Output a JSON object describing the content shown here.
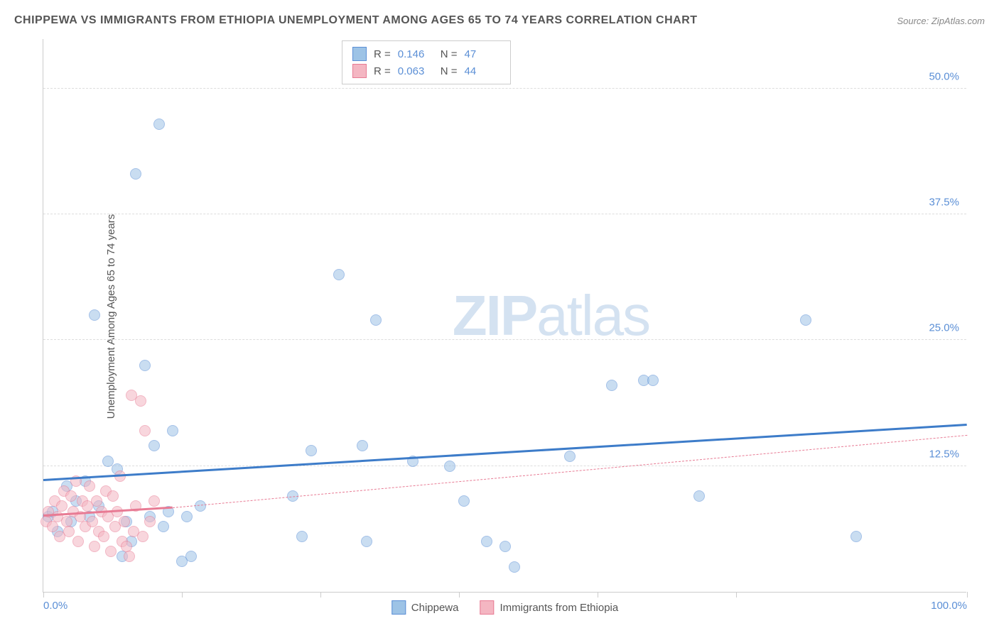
{
  "title": "CHIPPEWA VS IMMIGRANTS FROM ETHIOPIA UNEMPLOYMENT AMONG AGES 65 TO 74 YEARS CORRELATION CHART",
  "source": "Source: ZipAtlas.com",
  "y_axis_label": "Unemployment Among Ages 65 to 74 years",
  "watermark_bold": "ZIP",
  "watermark_light": "atlas",
  "chart": {
    "type": "scatter",
    "xlim": [
      0,
      100
    ],
    "ylim": [
      0,
      55
    ],
    "y_ticks": [
      {
        "value": 12.5,
        "label": "12.5%"
      },
      {
        "value": 25.0,
        "label": "25.0%"
      },
      {
        "value": 37.5,
        "label": "37.5%"
      },
      {
        "value": 50.0,
        "label": "50.0%"
      }
    ],
    "x_ticks": [
      0,
      15,
      30,
      45,
      60,
      75,
      100
    ],
    "x_tick_labels": {
      "start": "0.0%",
      "end": "100.0%"
    },
    "background_color": "#ffffff",
    "grid_color": "#dddddd",
    "axis_color": "#cccccc",
    "marker_size": 16,
    "marker_opacity": 0.55
  },
  "series": [
    {
      "name": "Chippewa",
      "color_fill": "#9dc3e6",
      "color_stroke": "#5b8fd6",
      "R": "0.146",
      "N": "47",
      "trend": {
        "x1": 0,
        "y1": 11.0,
        "x2": 100,
        "y2": 16.5,
        "color": "#3d7cc9",
        "width": 3,
        "dash": false
      },
      "points": [
        [
          0.5,
          7.5
        ],
        [
          1.0,
          8.0
        ],
        [
          1.5,
          6.0
        ],
        [
          2.5,
          10.5
        ],
        [
          3.0,
          7.0
        ],
        [
          3.5,
          9.0
        ],
        [
          4.5,
          11.0
        ],
        [
          5.0,
          7.5
        ],
        [
          5.5,
          27.5
        ],
        [
          6.0,
          8.5
        ],
        [
          7.0,
          13.0
        ],
        [
          8.0,
          12.2
        ],
        [
          8.5,
          3.5
        ],
        [
          9.0,
          7.0
        ],
        [
          9.5,
          5.0
        ],
        [
          10.0,
          41.5
        ],
        [
          11.0,
          22.5
        ],
        [
          11.5,
          7.5
        ],
        [
          12.0,
          14.5
        ],
        [
          12.5,
          46.5
        ],
        [
          13.0,
          6.5
        ],
        [
          13.5,
          8.0
        ],
        [
          14.0,
          16.0
        ],
        [
          15.0,
          3.0
        ],
        [
          15.5,
          7.5
        ],
        [
          16.0,
          3.5
        ],
        [
          17.0,
          8.5
        ],
        [
          27.0,
          9.5
        ],
        [
          28.0,
          5.5
        ],
        [
          29.0,
          14.0
        ],
        [
          32.0,
          31.5
        ],
        [
          34.5,
          14.5
        ],
        [
          35.0,
          5.0
        ],
        [
          36.0,
          27.0
        ],
        [
          40.0,
          13.0
        ],
        [
          44.0,
          12.5
        ],
        [
          45.5,
          9.0
        ],
        [
          48.0,
          5.0
        ],
        [
          50.0,
          4.5
        ],
        [
          51.0,
          2.5
        ],
        [
          57.0,
          13.5
        ],
        [
          61.5,
          20.5
        ],
        [
          65.0,
          21.0
        ],
        [
          66.0,
          21.0
        ],
        [
          71.0,
          9.5
        ],
        [
          82.5,
          27.0
        ],
        [
          88.0,
          5.5
        ]
      ]
    },
    {
      "name": "Immigrants from Ethiopia",
      "color_fill": "#f4b6c2",
      "color_stroke": "#e87b94",
      "R": "0.063",
      "N": "44",
      "trend_solid": {
        "x1": 0,
        "y1": 7.5,
        "x2": 14,
        "y2": 8.3,
        "color": "#e87b94",
        "width": 3
      },
      "trend_dashed": {
        "x1": 14,
        "y1": 8.3,
        "x2": 100,
        "y2": 15.5,
        "color": "#e87b94",
        "width": 1
      },
      "points": [
        [
          0.3,
          7.0
        ],
        [
          0.5,
          8.0
        ],
        [
          1.0,
          6.5
        ],
        [
          1.2,
          9.0
        ],
        [
          1.5,
          7.5
        ],
        [
          1.8,
          5.5
        ],
        [
          2.0,
          8.5
        ],
        [
          2.2,
          10.0
        ],
        [
          2.5,
          7.0
        ],
        [
          2.8,
          6.0
        ],
        [
          3.0,
          9.5
        ],
        [
          3.2,
          8.0
        ],
        [
          3.5,
          11.0
        ],
        [
          3.8,
          5.0
        ],
        [
          4.0,
          7.5
        ],
        [
          4.2,
          9.0
        ],
        [
          4.5,
          6.5
        ],
        [
          4.8,
          8.5
        ],
        [
          5.0,
          10.5
        ],
        [
          5.3,
          7.0
        ],
        [
          5.5,
          4.5
        ],
        [
          5.8,
          9.0
        ],
        [
          6.0,
          6.0
        ],
        [
          6.3,
          8.0
        ],
        [
          6.5,
          5.5
        ],
        [
          6.8,
          10.0
        ],
        [
          7.0,
          7.5
        ],
        [
          7.3,
          4.0
        ],
        [
          7.5,
          9.5
        ],
        [
          7.8,
          6.5
        ],
        [
          8.0,
          8.0
        ],
        [
          8.3,
          11.5
        ],
        [
          8.5,
          5.0
        ],
        [
          8.8,
          7.0
        ],
        [
          9.0,
          4.5
        ],
        [
          9.3,
          3.5
        ],
        [
          9.5,
          19.5
        ],
        [
          9.8,
          6.0
        ],
        [
          10.0,
          8.5
        ],
        [
          10.5,
          19.0
        ],
        [
          10.8,
          5.5
        ],
        [
          11.0,
          16.0
        ],
        [
          11.5,
          7.0
        ],
        [
          12.0,
          9.0
        ]
      ]
    }
  ],
  "legend": {
    "series1_label": "Chippewa",
    "series2_label": "Immigrants from Ethiopia"
  },
  "stats_labels": {
    "R": "R  =",
    "N": "N  ="
  }
}
